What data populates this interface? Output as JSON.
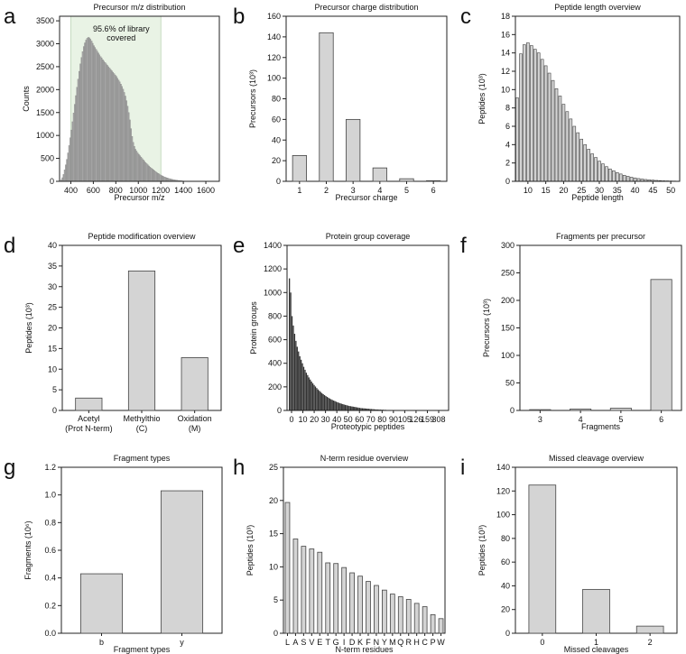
{
  "colors": {
    "bar_fill": "#d4d4d4",
    "bar_stroke": "#444444",
    "dark_bar": "#333333",
    "shade": "#e9f3e5",
    "shade_stroke": "#a8c8a0",
    "dist_bar": "#a6a6a6"
  },
  "chart_data": [
    {
      "letter": "a",
      "type": "bar",
      "title": "Precursor m/z distribution",
      "xlabel": "Precursor m/z",
      "ylabel": "Counts",
      "xlim": [
        300,
        1720
      ],
      "ylim": [
        0,
        3600
      ],
      "xticks": [
        400,
        600,
        800,
        1000,
        1200,
        1400,
        1600
      ],
      "yticks": [
        0,
        500,
        1000,
        1500,
        2000,
        2500,
        3000,
        3500
      ],
      "annotation": {
        "lines": [
          "95.6% of library",
          "covered"
        ],
        "range": [
          400,
          1200
        ]
      },
      "bin_width": 10,
      "x_start": 305,
      "values": [
        5,
        30,
        80,
        150,
        250,
        360,
        480,
        620,
        780,
        950,
        1120,
        1300,
        1490,
        1680,
        1870,
        2050,
        2230,
        2400,
        2560,
        2700,
        2830,
        2940,
        3020,
        3080,
        3120,
        3140,
        3130,
        3100,
        3060,
        3010,
        2960,
        2920,
        2880,
        2840,
        2800,
        2760,
        2720,
        2690,
        2650,
        2620,
        2590,
        2560,
        2530,
        2500,
        2470,
        2440,
        2410,
        2380,
        2350,
        2320,
        2290,
        2250,
        2210,
        2170,
        2120,
        2070,
        2010,
        1940,
        1860,
        1760,
        1640,
        1500,
        1340,
        1150,
        980,
        850,
        760,
        700,
        660,
        620,
        590,
        560,
        530,
        500,
        470,
        440,
        410,
        385,
        360,
        335,
        310,
        290,
        270,
        250,
        230,
        210,
        190,
        175,
        160,
        145,
        130,
        118,
        106,
        95,
        85,
        76,
        68,
        60,
        53,
        47,
        41,
        36,
        31,
        27,
        23,
        20,
        17,
        14,
        12,
        10,
        8,
        7,
        6,
        5,
        4,
        3,
        3,
        2,
        2,
        2,
        1,
        1,
        1,
        1,
        1,
        0,
        0,
        0,
        0,
        0,
        0,
        0,
        0,
        0,
        0,
        0,
        0,
        0
      ]
    },
    {
      "letter": "b",
      "type": "bar",
      "title": "Precursor charge distribution",
      "xlabel": "Precursor charge",
      "ylabel": "Precursors (10³)",
      "categories": [
        "1",
        "2",
        "3",
        "4",
        "5",
        "6"
      ],
      "values": [
        25,
        144,
        60,
        13,
        2.5,
        0.6
      ],
      "ylim": [
        0,
        160
      ],
      "yticks": [
        0,
        20,
        40,
        60,
        80,
        100,
        120,
        140,
        160
      ]
    },
    {
      "letter": "c",
      "type": "bar",
      "title": "Peptide length overview",
      "xlabel": "Peptide length",
      "ylabel": "Peptides (10³)",
      "x_start": 7,
      "values": [
        9.1,
        13.9,
        14.9,
        15.1,
        14.8,
        14.4,
        14.0,
        13.3,
        12.6,
        11.8,
        11.0,
        10.1,
        9.3,
        8.4,
        7.6,
        6.8,
        6.0,
        5.3,
        4.6,
        4.0,
        3.5,
        3.0,
        2.6,
        2.2,
        1.9,
        1.6,
        1.35,
        1.15,
        0.95,
        0.8,
        0.66,
        0.55,
        0.45,
        0.37,
        0.3,
        0.25,
        0.2,
        0.16,
        0.13,
        0.1,
        0.08,
        0.06,
        0.05,
        0.04,
        0.03
      ],
      "xlim": [
        6.5,
        52.5
      ],
      "xticks": [
        10,
        15,
        20,
        25,
        30,
        35,
        40,
        45,
        50
      ],
      "ylim": [
        0,
        18
      ],
      "yticks": [
        0,
        2,
        4,
        6,
        8,
        10,
        12,
        14,
        16,
        18
      ]
    },
    {
      "letter": "d",
      "type": "bar",
      "title": "Peptide modification overview",
      "xlabel": "",
      "ylabel": "Peptides (10³)",
      "categories": [
        [
          "Acetyl",
          "(Prot N-term)"
        ],
        [
          "Methylthio",
          "(C)"
        ],
        [
          "Oxidation",
          "(M)"
        ]
      ],
      "values": [
        3.0,
        33.8,
        12.8
      ],
      "ylim": [
        0,
        40
      ],
      "yticks": [
        0,
        5,
        10,
        15,
        20,
        25,
        30,
        35,
        40
      ]
    },
    {
      "letter": "e",
      "type": "bar",
      "title": "Protein group coverage",
      "xlabel": "Proteotypic peptides",
      "ylabel": "Protein groups",
      "values": [
        1120,
        1000,
        800,
        720,
        650,
        590,
        540,
        500,
        460,
        430,
        400,
        370,
        345,
        320,
        300,
        280,
        262,
        245,
        230,
        216,
        203,
        190,
        178,
        167,
        157,
        147,
        138,
        130,
        122,
        115,
        108,
        101,
        95,
        89,
        84,
        79,
        74,
        69,
        65,
        61,
        57,
        54,
        50,
        47,
        44,
        41,
        38,
        36,
        34,
        32,
        30,
        28,
        26,
        24,
        22,
        20,
        19,
        18,
        17,
        16,
        15,
        14,
        13,
        12,
        11,
        10,
        9,
        8,
        8,
        7,
        7,
        6,
        6,
        5,
        5,
        4,
        4,
        4,
        3,
        3,
        3,
        3,
        2,
        2,
        2,
        2,
        2,
        2,
        1,
        1,
        1,
        1,
        1,
        1,
        1,
        1,
        1,
        1,
        1,
        1,
        1,
        0,
        1,
        0,
        1,
        0,
        0,
        1,
        0,
        0,
        0,
        0,
        1,
        0,
        0,
        0,
        0,
        0,
        0,
        0
      ],
      "xtick_labels": [
        "0",
        "10",
        "20",
        "30",
        "40",
        "50",
        "60",
        "70",
        "80",
        "90",
        "105",
        "126",
        "159",
        "308"
      ],
      "ylim": [
        0,
        1400
      ],
      "yticks": [
        0,
        200,
        400,
        600,
        800,
        1000,
        1200,
        1400
      ]
    },
    {
      "letter": "f",
      "type": "bar",
      "title": "Fragments per precursor",
      "xlabel": "Fragments",
      "ylabel": "Precursors (10³)",
      "categories": [
        "3",
        "4",
        "5",
        "6"
      ],
      "values": [
        1.5,
        2.5,
        4,
        238
      ],
      "ylim": [
        0,
        300
      ],
      "yticks": [
        0,
        50,
        100,
        150,
        200,
        250,
        300
      ]
    },
    {
      "letter": "g",
      "type": "bar",
      "title": "Fragment types",
      "xlabel": "Fragment types",
      "ylabel": "Fragments (10⁶)",
      "categories": [
        "b",
        "y"
      ],
      "values": [
        0.43,
        1.03
      ],
      "ylim": [
        0,
        1.2
      ],
      "yticks": [
        0,
        0.2,
        0.4,
        0.6,
        0.8,
        1.0,
        1.2
      ]
    },
    {
      "letter": "h",
      "type": "bar",
      "title": "N-term residue overview",
      "xlabel": "N-term residues",
      "ylabel": "Peptides (10³)",
      "categories": [
        "L",
        "A",
        "S",
        "V",
        "E",
        "T",
        "G",
        "I",
        "D",
        "K",
        "F",
        "N",
        "Y",
        "M",
        "Q",
        "R",
        "H",
        "C",
        "P",
        "W"
      ],
      "values": [
        19.7,
        14.2,
        13.1,
        12.7,
        12.2,
        10.6,
        10.5,
        9.9,
        9.1,
        8.6,
        7.8,
        7.2,
        6.5,
        5.9,
        5.5,
        5.1,
        4.5,
        4.0,
        2.8,
        2.2
      ],
      "ylim": [
        0,
        25
      ],
      "yticks": [
        0,
        5,
        10,
        15,
        20,
        25
      ]
    },
    {
      "letter": "i",
      "type": "bar",
      "title": "Missed cleavage overview",
      "xlabel": "Missed cleavages",
      "ylabel": "Peptides (10³)",
      "categories": [
        "0",
        "1",
        "2"
      ],
      "values": [
        125,
        37,
        6
      ],
      "ylim": [
        0,
        140
      ],
      "yticks": [
        0,
        20,
        40,
        60,
        80,
        100,
        120,
        140
      ]
    }
  ]
}
